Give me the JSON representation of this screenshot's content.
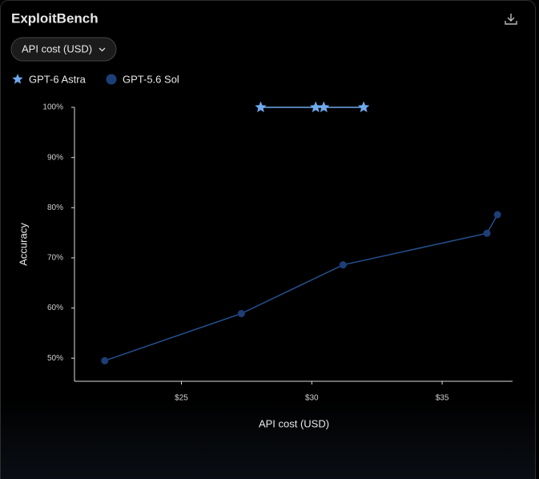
{
  "dropdown": "API cost (USD)",
  "chart_data": {
    "type": "line",
    "title": "ExploitBench",
    "x_label": "API cost (USD)",
    "y_label": "Accuracy",
    "xlim": [
      20.9,
      37.7
    ],
    "ylim": [
      45.4,
      100
    ],
    "xticks": [
      {
        "value": 25,
        "label": "$25"
      },
      {
        "value": 30,
        "label": "$30"
      },
      {
        "value": 35,
        "label": "$35"
      }
    ],
    "yticks": [
      {
        "value": 50,
        "label": "50%"
      },
      {
        "value": 60,
        "label": "60%"
      },
      {
        "value": 70,
        "label": "70%"
      },
      {
        "value": 80,
        "label": "80%"
      },
      {
        "value": 90,
        "label": "90%"
      },
      {
        "value": 100,
        "label": "100%"
      }
    ],
    "grid": false,
    "legend": "top-left",
    "series": [
      {
        "name": "GPT-6 Astra",
        "color": "#6fa9ee",
        "marker": "star",
        "x": [
          28.04,
          30.15,
          30.46,
          31.99
        ],
        "values": [
          100,
          100,
          100,
          100
        ]
      },
      {
        "name": "GPT-5.6 Sol",
        "color": "#1d3f78",
        "marker": "circle",
        "x": [
          22.06,
          27.3,
          31.2,
          36.72,
          37.12
        ],
        "values": [
          49.5,
          58.9,
          68.6,
          74.9,
          78.6
        ]
      }
    ]
  }
}
